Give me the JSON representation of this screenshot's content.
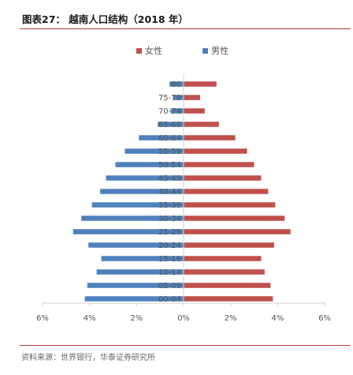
{
  "header": {
    "title": "图表27：  越南人口结构（2018 年）"
  },
  "footer": {
    "source": "资料来源：世界银行，华泰证券研究所"
  },
  "colors": {
    "female": "#c0504d",
    "male": "#4f81bd",
    "rule": "#b23a3a"
  },
  "chart_data": {
    "type": "bar",
    "orientation": "horizontal-population-pyramid",
    "categories": [
      "80",
      "75-79",
      "70-74",
      "65-69",
      "60-64",
      "55-59",
      "50-54",
      "45-49",
      "40-44",
      "35-39",
      "30-34",
      "25-29",
      "20-24",
      "15-19",
      "10-14",
      "05-09",
      "00-04"
    ],
    "series": [
      {
        "name": "女性",
        "side": "right",
        "values": [
          1.4,
          0.7,
          0.9,
          1.5,
          2.2,
          2.7,
          3.0,
          3.3,
          3.6,
          3.9,
          4.3,
          4.55,
          3.85,
          3.3,
          3.45,
          3.7,
          3.8
        ]
      },
      {
        "name": "男性",
        "side": "left",
        "values": [
          0.6,
          0.45,
          0.55,
          1.1,
          1.9,
          2.5,
          2.9,
          3.3,
          3.55,
          3.9,
          4.35,
          4.7,
          4.05,
          3.5,
          3.7,
          4.1,
          4.2
        ]
      }
    ],
    "xticks": [
      "6%",
      "4%",
      "2%",
      "0%",
      "2%",
      "4%",
      "6%"
    ],
    "xlim": [
      -6,
      6
    ],
    "legend": "top-center"
  }
}
